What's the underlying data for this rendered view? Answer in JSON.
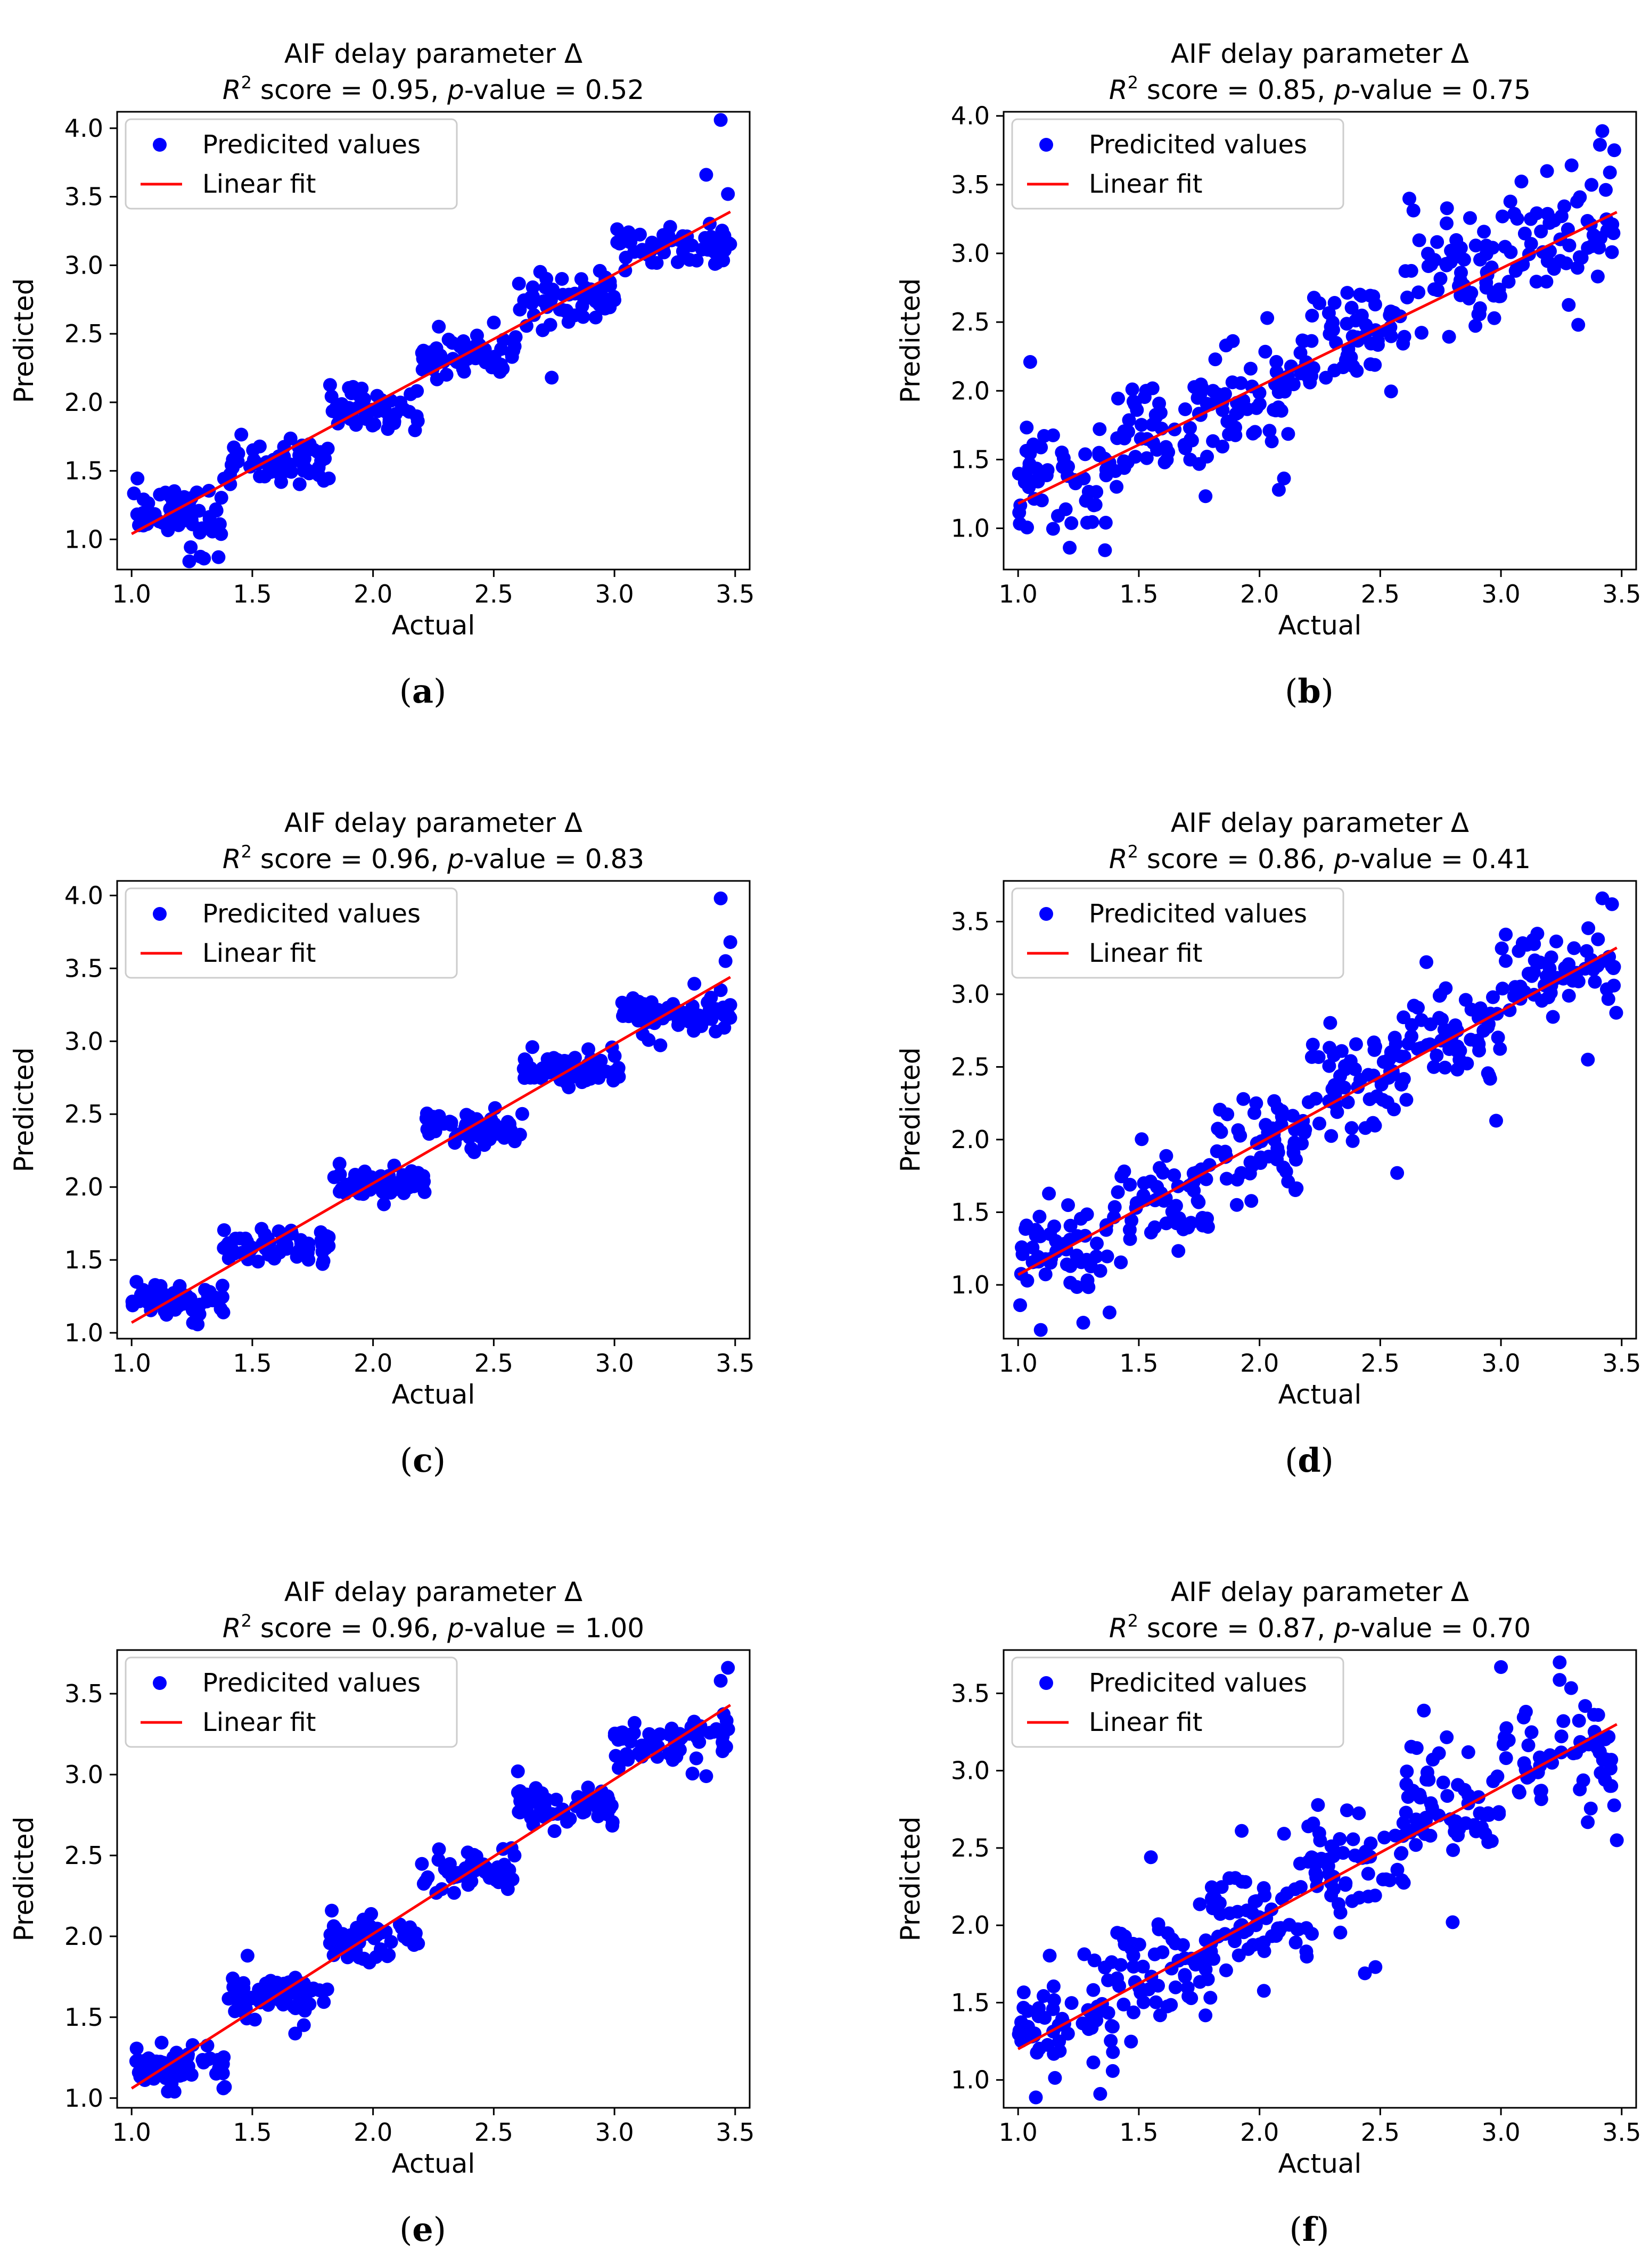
{
  "colors": {
    "points": "#0000ff",
    "fit_line": "#ff0000",
    "axes": "#000000",
    "background": "#ffffff"
  },
  "legend": {
    "points_label": "Predicited values",
    "line_label": "Linear fit"
  },
  "chart_data": [
    {
      "type": "scatter",
      "panel": "(a)",
      "caption_letter": "a",
      "seed": 11,
      "title": "AIF delay parameter Δ",
      "r2": "0.95",
      "pvalue": "0.52",
      "subtitle_r": "R",
      "subtitle_sup": "2",
      "subtitle_mid": " score = 0.95, ",
      "subtitle_p": "p",
      "subtitle_end": "-value = 0.52",
      "xlabel": "Actual",
      "ylabel": "Predicted",
      "xlim": [
        0.94,
        3.56
      ],
      "ylim": [
        0.78,
        4.12
      ],
      "xticks": [
        1.0,
        1.5,
        2.0,
        2.5,
        3.0,
        3.5
      ],
      "xtick_labels": [
        "1.0",
        "1.5",
        "2.0",
        "2.5",
        "3.0",
        "3.5"
      ],
      "yticks": [
        1.0,
        1.5,
        2.0,
        2.5,
        3.0,
        3.5,
        4.0
      ],
      "ytick_labels": [
        "1.0",
        "1.5",
        "2.0",
        "2.5",
        "3.0",
        "3.5",
        "4.0"
      ],
      "fit": {
        "x": [
          1.0,
          3.48
        ],
        "y": [
          1.04,
          3.39
        ]
      },
      "clusters": [
        {
          "x": [
            1.0,
            1.38
          ],
          "y": 1.2,
          "n": 60,
          "s": 0.11
        },
        {
          "x": [
            1.38,
            1.82
          ],
          "y": 1.55,
          "n": 60,
          "s": 0.08
        },
        {
          "x": [
            1.82,
            2.2
          ],
          "y": 1.93,
          "n": 55,
          "s": 0.08
        },
        {
          "x": [
            2.2,
            2.6
          ],
          "y": 2.35,
          "n": 55,
          "s": 0.08
        },
        {
          "x": [
            2.6,
            3.0
          ],
          "y": 2.75,
          "n": 55,
          "s": 0.09
        },
        {
          "x": [
            3.0,
            3.48
          ],
          "y": 3.15,
          "n": 60,
          "s": 0.09
        }
      ],
      "extra_points": [
        [
          3.44,
          4.06
        ],
        [
          3.38,
          3.66
        ],
        [
          2.74,
          2.18
        ],
        [
          1.3,
          0.86
        ],
        [
          1.36,
          0.87
        ],
        [
          3.47,
          3.52
        ]
      ]
    },
    {
      "type": "scatter",
      "panel": "(b)",
      "caption_letter": "b",
      "seed": 23,
      "title": "AIF delay parameter Δ",
      "r2": "0.85",
      "pvalue": "0.75",
      "subtitle_r": "R",
      "subtitle_sup": "2",
      "subtitle_mid": " score = 0.85, ",
      "subtitle_p": "p",
      "subtitle_end": "-value = 0.75",
      "xlabel": "Actual",
      "ylabel": "Predicted",
      "xlim": [
        0.94,
        3.56
      ],
      "ylim": [
        0.7,
        4.03
      ],
      "xticks": [
        1.0,
        1.5,
        2.0,
        2.5,
        3.0,
        3.5
      ],
      "xtick_labels": [
        "1.0",
        "1.5",
        "2.0",
        "2.5",
        "3.0",
        "3.5"
      ],
      "yticks": [
        1.0,
        1.5,
        2.0,
        2.5,
        3.0,
        3.5,
        4.0
      ],
      "ytick_labels": [
        "1.0",
        "1.5",
        "2.0",
        "2.5",
        "3.0",
        "3.5",
        "4.0"
      ],
      "fit": {
        "x": [
          1.0,
          3.48
        ],
        "y": [
          1.18,
          3.3
        ]
      },
      "clusters": [
        {
          "x": [
            1.0,
            1.4
          ],
          "y": 1.35,
          "n": 55,
          "s": 0.22
        },
        {
          "x": [
            1.4,
            1.8
          ],
          "y": 1.7,
          "n": 55,
          "s": 0.22
        },
        {
          "x": [
            1.8,
            2.2
          ],
          "y": 1.95,
          "n": 55,
          "s": 0.2
        },
        {
          "x": [
            2.2,
            2.6
          ],
          "y": 2.35,
          "n": 55,
          "s": 0.2
        },
        {
          "x": [
            2.6,
            3.0
          ],
          "y": 2.8,
          "n": 55,
          "s": 0.22
        },
        {
          "x": [
            3.0,
            3.48
          ],
          "y": 3.15,
          "n": 60,
          "s": 0.22
        }
      ],
      "extra_points": [
        [
          3.42,
          3.89
        ],
        [
          3.41,
          3.79
        ],
        [
          1.05,
          2.21
        ],
        [
          1.36,
          0.84
        ],
        [
          2.08,
          1.28
        ],
        [
          3.32,
          2.48
        ]
      ]
    },
    {
      "type": "scatter",
      "panel": "(c)",
      "caption_letter": "c",
      "seed": 37,
      "title": "AIF delay parameter Δ",
      "r2": "0.96",
      "pvalue": "0.83",
      "subtitle_r": "R",
      "subtitle_sup": "2",
      "subtitle_mid": " score = 0.96, ",
      "subtitle_p": "p",
      "subtitle_end": "-value = 0.83",
      "xlabel": "Actual",
      "ylabel": "Predicted",
      "xlim": [
        0.94,
        3.56
      ],
      "ylim": [
        0.96,
        4.1
      ],
      "xticks": [
        1.0,
        1.5,
        2.0,
        2.5,
        3.0,
        3.5
      ],
      "xtick_labels": [
        "1.0",
        "1.5",
        "2.0",
        "2.5",
        "3.0",
        "3.5"
      ],
      "yticks": [
        1.0,
        1.5,
        2.0,
        2.5,
        3.0,
        3.5,
        4.0
      ],
      "ytick_labels": [
        "1.0",
        "1.5",
        "2.0",
        "2.5",
        "3.0",
        "3.5",
        "4.0"
      ],
      "fit": {
        "x": [
          1.0,
          3.48
        ],
        "y": [
          1.07,
          3.44
        ]
      },
      "clusters": [
        {
          "x": [
            1.0,
            1.38
          ],
          "y": 1.22,
          "n": 55,
          "s": 0.06
        },
        {
          "x": [
            1.38,
            1.82
          ],
          "y": 1.62,
          "n": 60,
          "s": 0.06
        },
        {
          "x": [
            1.82,
            2.22
          ],
          "y": 2.02,
          "n": 60,
          "s": 0.05
        },
        {
          "x": [
            2.22,
            2.62
          ],
          "y": 2.4,
          "n": 55,
          "s": 0.06
        },
        {
          "x": [
            2.62,
            3.02
          ],
          "y": 2.8,
          "n": 55,
          "s": 0.06
        },
        {
          "x": [
            3.02,
            3.48
          ],
          "y": 3.18,
          "n": 60,
          "s": 0.07
        }
      ],
      "extra_points": [
        [
          3.44,
          3.98
        ],
        [
          3.48,
          3.68
        ],
        [
          3.46,
          3.55
        ],
        [
          1.02,
          1.35
        ],
        [
          2.66,
          2.96
        ],
        [
          1.38,
          1.14
        ]
      ]
    },
    {
      "type": "scatter",
      "panel": "(d)",
      "caption_letter": "d",
      "seed": 41,
      "title": "AIF delay parameter Δ",
      "r2": "0.86",
      "pvalue": "0.41",
      "subtitle_r": "R",
      "subtitle_sup": "2",
      "subtitle_mid": " score = 0.86, ",
      "subtitle_p": "p",
      "subtitle_end": "-value = 0.41",
      "xlabel": "Actual",
      "ylabel": "Predicted",
      "xlim": [
        0.94,
        3.56
      ],
      "ylim": [
        0.63,
        3.78
      ],
      "xticks": [
        1.0,
        1.5,
        2.0,
        2.5,
        3.0,
        3.5
      ],
      "xtick_labels": [
        "1.0",
        "1.5",
        "2.0",
        "2.5",
        "3.0",
        "3.5"
      ],
      "yticks": [
        1.0,
        1.5,
        2.0,
        2.5,
        3.0,
        3.5
      ],
      "ytick_labels": [
        "1.0",
        "1.5",
        "2.0",
        "2.5",
        "3.0",
        "3.5"
      ],
      "fit": {
        "x": [
          1.0,
          3.48
        ],
        "y": [
          1.07,
          3.32
        ]
      },
      "clusters": [
        {
          "x": [
            1.0,
            1.4
          ],
          "y": 1.22,
          "n": 55,
          "s": 0.16
        },
        {
          "x": [
            1.4,
            1.8
          ],
          "y": 1.58,
          "n": 55,
          "s": 0.16
        },
        {
          "x": [
            1.8,
            2.2
          ],
          "y": 1.95,
          "n": 55,
          "s": 0.2
        },
        {
          "x": [
            2.2,
            2.6
          ],
          "y": 2.38,
          "n": 60,
          "s": 0.2
        },
        {
          "x": [
            2.6,
            3.0
          ],
          "y": 2.75,
          "n": 55,
          "s": 0.2
        },
        {
          "x": [
            3.0,
            3.48
          ],
          "y": 3.15,
          "n": 60,
          "s": 0.16
        }
      ],
      "extra_points": [
        [
          3.42,
          3.66
        ],
        [
          3.46,
          3.62
        ],
        [
          1.27,
          0.74
        ],
        [
          2.98,
          2.13
        ],
        [
          3.36,
          2.55
        ],
        [
          2.57,
          1.77
        ]
      ]
    },
    {
      "type": "scatter",
      "panel": "(e)",
      "caption_letter": "e",
      "seed": 53,
      "title": "AIF delay parameter Δ",
      "r2": "0.96",
      "pvalue": "1.00",
      "subtitle_r": "R",
      "subtitle_sup": "2",
      "subtitle_mid": " score = 0.96, ",
      "subtitle_p": "p",
      "subtitle_end": "-value = 1.00",
      "xlabel": "Actual",
      "ylabel": "Predicted",
      "xlim": [
        0.94,
        3.56
      ],
      "ylim": [
        0.94,
        3.77
      ],
      "xticks": [
        1.0,
        1.5,
        2.0,
        2.5,
        3.0,
        3.5
      ],
      "xtick_labels": [
        "1.0",
        "1.5",
        "2.0",
        "2.5",
        "3.0",
        "3.5"
      ],
      "yticks": [
        1.0,
        1.5,
        2.0,
        2.5,
        3.0,
        3.5
      ],
      "ytick_labels": [
        "1.0",
        "1.5",
        "2.0",
        "2.5",
        "3.0",
        "3.5"
      ],
      "fit": {
        "x": [
          1.0,
          3.48
        ],
        "y": [
          1.06,
          3.43
        ]
      },
      "clusters": [
        {
          "x": [
            1.0,
            1.4
          ],
          "y": 1.2,
          "n": 55,
          "s": 0.06
        },
        {
          "x": [
            1.4,
            1.82
          ],
          "y": 1.6,
          "n": 60,
          "s": 0.07
        },
        {
          "x": [
            1.82,
            2.2
          ],
          "y": 2.0,
          "n": 55,
          "s": 0.07
        },
        {
          "x": [
            2.2,
            2.6
          ],
          "y": 2.4,
          "n": 55,
          "s": 0.06
        },
        {
          "x": [
            2.6,
            3.0
          ],
          "y": 2.8,
          "n": 55,
          "s": 0.07
        },
        {
          "x": [
            3.0,
            3.48
          ],
          "y": 3.2,
          "n": 60,
          "s": 0.08
        }
      ],
      "extra_points": [
        [
          3.47,
          3.66
        ],
        [
          3.44,
          3.58
        ],
        [
          1.48,
          1.88
        ],
        [
          2.6,
          3.02
        ],
        [
          3.38,
          2.99
        ],
        [
          1.38,
          1.06
        ]
      ]
    },
    {
      "type": "scatter",
      "panel": "(f)",
      "caption_letter": "f",
      "seed": 67,
      "title": "AIF delay parameter Δ",
      "r2": "0.87",
      "pvalue": "0.70",
      "subtitle_r": "R",
      "subtitle_sup": "2",
      "subtitle_mid": " score = 0.87, ",
      "subtitle_p": "p",
      "subtitle_end": "-value = 0.70",
      "xlabel": "Actual",
      "ylabel": "Predicted",
      "xlim": [
        0.94,
        3.56
      ],
      "ylim": [
        0.82,
        3.78
      ],
      "xticks": [
        1.0,
        1.5,
        2.0,
        2.5,
        3.0,
        3.5
      ],
      "xtick_labels": [
        "1.0",
        "1.5",
        "2.0",
        "2.5",
        "3.0",
        "3.5"
      ],
      "yticks": [
        1.0,
        1.5,
        2.0,
        2.5,
        3.0,
        3.5
      ],
      "ytick_labels": [
        "1.0",
        "1.5",
        "2.0",
        "2.5",
        "3.0",
        "3.5"
      ],
      "fit": {
        "x": [
          1.0,
          3.48
        ],
        "y": [
          1.2,
          3.3
        ]
      },
      "clusters": [
        {
          "x": [
            1.0,
            1.4
          ],
          "y": 1.38,
          "n": 60,
          "s": 0.17
        },
        {
          "x": [
            1.4,
            1.8
          ],
          "y": 1.72,
          "n": 60,
          "s": 0.2
        },
        {
          "x": [
            1.8,
            2.2
          ],
          "y": 2.05,
          "n": 60,
          "s": 0.2
        },
        {
          "x": [
            2.2,
            2.6
          ],
          "y": 2.4,
          "n": 60,
          "s": 0.2
        },
        {
          "x": [
            2.6,
            3.0
          ],
          "y": 2.8,
          "n": 60,
          "s": 0.18
        },
        {
          "x": [
            3.0,
            3.48
          ],
          "y": 3.1,
          "n": 60,
          "s": 0.18
        }
      ],
      "extra_points": [
        [
          3.0,
          3.67
        ],
        [
          1.55,
          2.44
        ],
        [
          3.48,
          2.55
        ],
        [
          2.48,
          1.73
        ],
        [
          1.34,
          0.91
        ],
        [
          2.8,
          2.02
        ]
      ]
    }
  ]
}
